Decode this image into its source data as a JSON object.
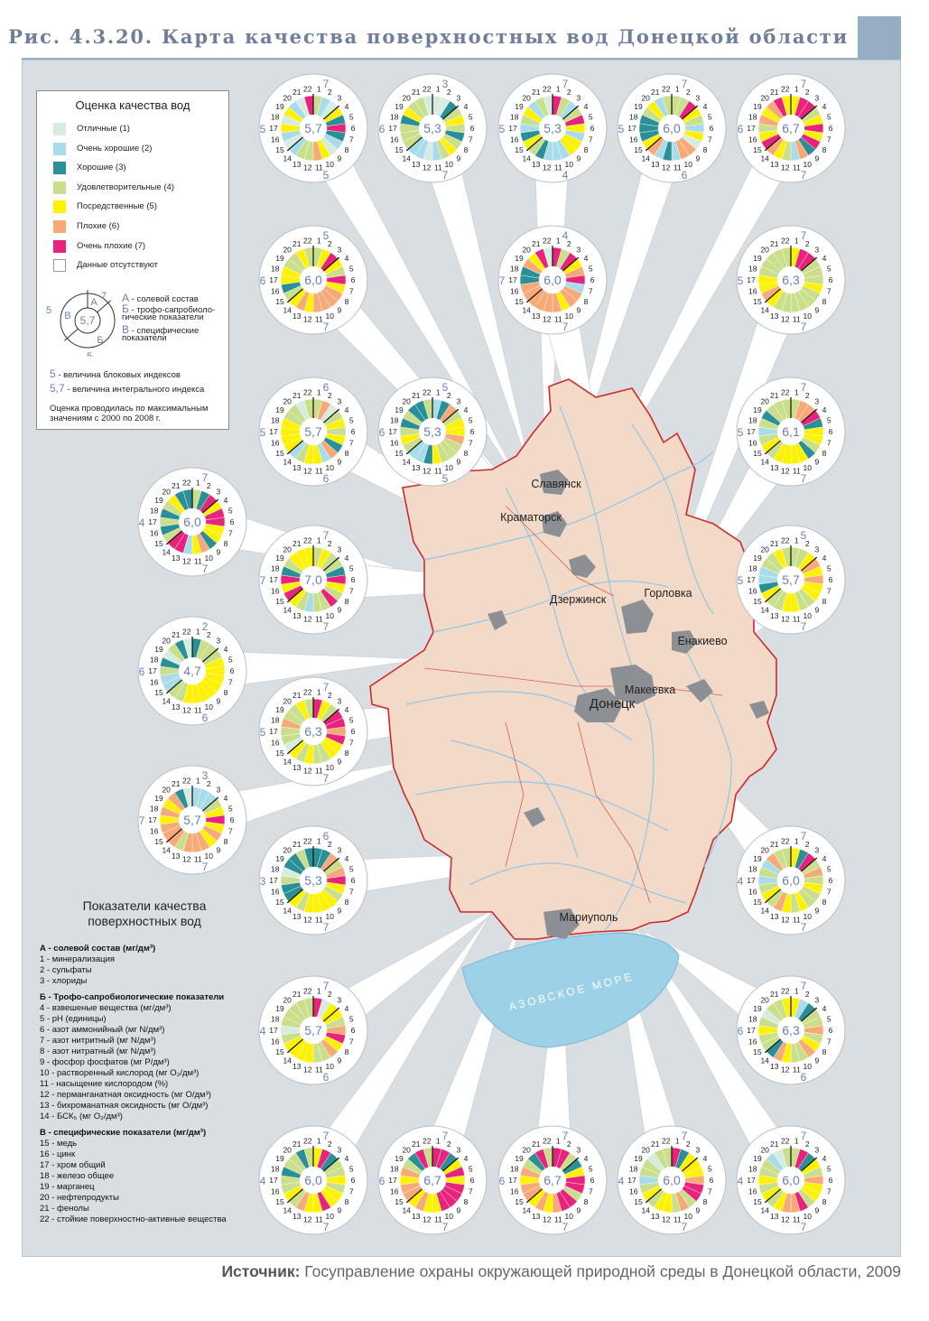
{
  "title": "Рис. 4.3.20. Карта качества поверхностных вод Донецкой области",
  "source": {
    "label": "Источник:",
    "text": "Госуправление охраны окружающей природной среды в Донецкой области, 2009"
  },
  "colors": {
    "frame_bg": "#d9dee3",
    "map_land": "#f3d9c8",
    "border": "#cc2a2a",
    "rivers": "#8fc7e6",
    "sea": "#9cd1e8",
    "cities": "#8c8f93",
    "title": "#6f7f99",
    "index_text": "#6a7fb4"
  },
  "legend": {
    "title": "Оценка качества вод",
    "items": [
      {
        "label": "Отличные (1)",
        "color": "#d6ece0"
      },
      {
        "label": "Очень хорошие (2)",
        "color": "#a8dcea"
      },
      {
        "label": "Хорошие (3)",
        "color": "#2b8f98"
      },
      {
        "label": "Удовлетворительные (4)",
        "color": "#c9df8c"
      },
      {
        "label": "Посредственные (5)",
        "color": "#fff200"
      },
      {
        "label": "Плохие (6)",
        "color": "#f7a978"
      },
      {
        "label": "Очень плохие (7)",
        "color": "#e8237e"
      },
      {
        "label": "Данные отсутствуют",
        "color": "#ffffff"
      }
    ],
    "abc": [
      {
        "key": "А",
        "text": " - солевой состав"
      },
      {
        "key": "Б",
        "text": " - трофо-сапробиоло-"
      },
      {
        "key": "",
        "text": "гические показатели"
      },
      {
        "key": "В",
        "text": " - специфические"
      },
      {
        "key": "",
        "text": "показатели"
      }
    ],
    "example": {
      "index": "5,7",
      "a": "7",
      "b": "5",
      "v": "5"
    },
    "block_index": {
      "value": "5",
      "text": " - величина блоковых индексов"
    },
    "integral_index": {
      "value": "5,7",
      "text": " - величина интегрального индекса"
    },
    "note": "Оценка проводилась по максимальным значениям с 2000 по 2008 г."
  },
  "map_labels": [
    {
      "name": "Славянск"
    },
    {
      "name": "Краматорск"
    },
    {
      "name": "Дзержинск"
    },
    {
      "name": "Горловка"
    },
    {
      "name": "Енакиево"
    },
    {
      "name": "Макеевка"
    },
    {
      "name": "Донецк"
    },
    {
      "name": "Мариуполь"
    },
    {
      "name": "АЗОВСКОЕ МОРЕ"
    }
  ],
  "indicators_title": "Показатели качества поверхностных вод",
  "indicators": [
    {
      "head": "А - солевой состав (мг/дм³)",
      "items": [
        "1 - минерализация",
        "2 - сульфаты",
        "3 - хлориды"
      ]
    },
    {
      "head": "Б - Трофо-сапробиологические показатели",
      "items": [
        "4 - взвешеные вещества (мг/дм³)",
        "5 - pH (единицы)",
        "6 - азот аммонийный (мг N/дм³)",
        "7 - азот нитритный (мг N/дм³)",
        "8 - азот нитратный (мг N/дм³)",
        "9 - фосфор фосфатов (мг P/дм³)",
        "10 - растворенный кислород (мг O₂/дм³)",
        "11 - насыщение кислородом (%)",
        "12 - перманганатная оксидность (мг O/дм³)",
        "13 - бихроманатная оксидность (мг O/дм³)",
        "14 - БСК₅ (мг O₂/дм³)"
      ]
    },
    {
      "head": "В - специфические показатели (мг/дм³)",
      "items": [
        "15 - медь",
        "16 - цинк",
        "17 - хром общий",
        "18 - железо общее",
        "19 - марганец",
        "20 - нефтепродукты",
        "21 - фенолы",
        "22 - стойкие поверхностно-активные вещества"
      ]
    }
  ],
  "sector_labels": [
    "1",
    "2",
    "3",
    "4",
    "5",
    "6",
    "7",
    "8",
    "9",
    "10",
    "11",
    "12",
    "13",
    "14",
    "15",
    "16",
    "17",
    "18",
    "19",
    "20",
    "21",
    "22"
  ],
  "stations": [
    {
      "index": "5,7",
      "a": "7",
      "b": "5",
      "v": "5",
      "q": "4215373215644212515217"
    },
    {
      "index": "5,3",
      "a": "3",
      "b": "7",
      "v": "6",
      "q": "1134543454212244435441"
    },
    {
      "index": "5,3",
      "a": "7",
      "b": "4",
      "v": "5",
      "q": "7424752552223453245241"
    },
    {
      "index": "6,0",
      "a": "7",
      "b": "6",
      "v": "5",
      "q": "4475425166232653334524"
    },
    {
      "index": "6,7",
      "a": "7",
      "b": "7",
      "v": "6",
      "q": "5774575736245675465675"
    },
    {
      "index": "6,0",
      "a": "5",
      "b": "7",
      "v": "6",
      "q": "4575475666656543554454"
    },
    {
      "index": "6,0",
      "a": "4",
      "b": "7",
      "v": "7",
      "q": "7475672665666666336571"
    },
    {
      "index": "6,3",
      "a": "7",
      "b": "7",
      "v": "5",
      "q": "5774445444444565544444"
    },
    {
      "index": "5,7",
      "a": "6",
      "b": "6",
      "v": "5",
      "q": "4614545362554255554414"
    },
    {
      "index": "5,3",
      "a": "5",
      "b": "5",
      "v": "6",
      "q": "2364556444532245434334"
    },
    {
      "index": "6,1",
      "a": "7",
      "b": "7",
      "v": "5",
      "q": "4667355435555454243444"
    },
    {
      "index": "6,0",
      "a": "7",
      "b": "7",
      "v": "4",
      "q": "4375775536527743434533"
    },
    {
      "index": "7,0",
      "a": "7",
      "b": "7",
      "v": "7",
      "q": "4544375474424575734555"
    },
    {
      "index": "5,7",
      "a": "5",
      "b": "7",
      "v": "5",
      "q": "4456565544554453224454"
    },
    {
      "index": "4,7",
      "a": "2",
      "b": "6",
      "v": "6",
      "q": "3444555555554422431431"
    },
    {
      "index": "6,3",
      "a": "7",
      "b": "7",
      "v": "5",
      "q": "7547767554454514464454"
    },
    {
      "index": "5,7",
      "a": "3",
      "b": "7",
      "v": "7",
      "q": "2224575656664666565631"
    },
    {
      "index": "5,3",
      "a": "6",
      "b": "7",
      "v": "3",
      "q": "3364675455554533413343"
    },
    {
      "index": "6,0",
      "a": "7",
      "b": "7",
      "v": "4",
      "q": "5374645445456454242644"
    },
    {
      "index": "5,7",
      "a": "7",
      "b": "6",
      "v": "4",
      "q": "7155467564455554144444"
    },
    {
      "index": "6,3",
      "a": "7",
      "b": "6",
      "v": "6",
      "q": "5234464564456344541445"
    },
    {
      "index": "6,0",
      "a": "7",
      "b": "7",
      "v": "4",
      "q": "5734454557556454434434"
    },
    {
      "index": "6,7",
      "a": "7",
      "b": "7",
      "v": "6",
      "q": "7735757777556566564374"
    },
    {
      "index": "6,7",
      "a": "7",
      "b": "7",
      "v": "6",
      "q": "7743577477656566564374"
    },
    {
      "index": "6,0",
      "a": "7",
      "b": "7",
      "v": "4",
      "q": "7355567746455454244144"
    },
    {
      "index": "6,0",
      "a": "7",
      "b": "7",
      "v": "4",
      "q": "4735465547665454544214"
    }
  ]
}
